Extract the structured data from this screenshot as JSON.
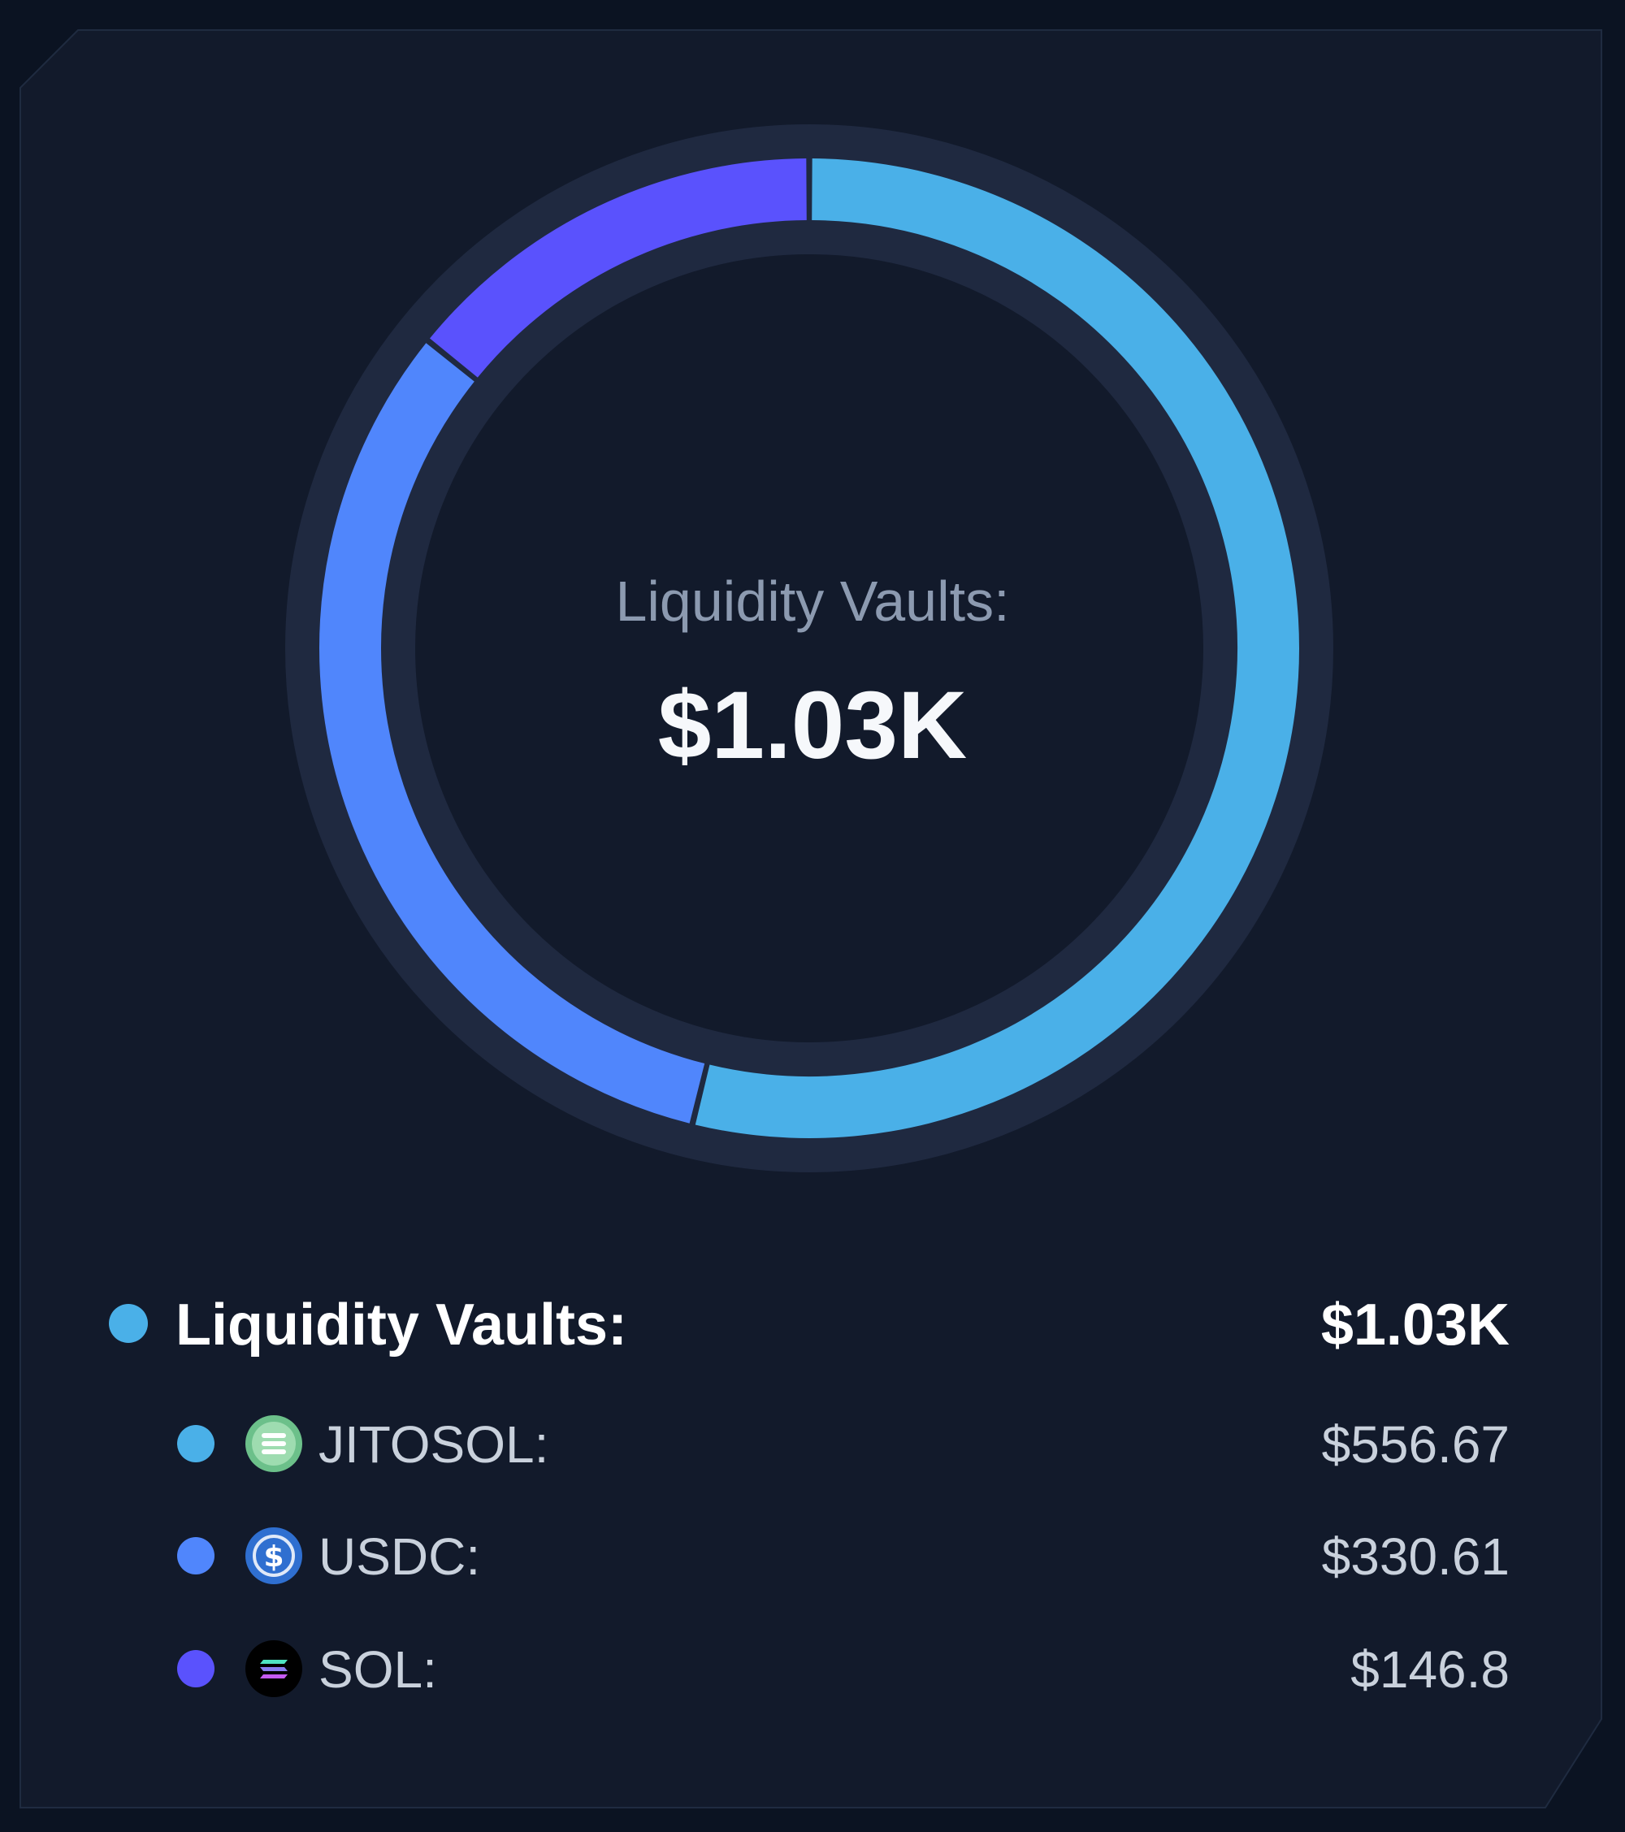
{
  "colors": {
    "jitosol": "#4ab0e8",
    "usdc": "#5086fc",
    "sol": "#5a52fd",
    "track": "#1f2940",
    "card": "#121a2b"
  },
  "center": {
    "label": "Liquidity Vaults:",
    "value": "$1.03K"
  },
  "legend": {
    "total": {
      "label": "Liquidity Vaults:",
      "value": "$1.03K"
    },
    "items": [
      {
        "icon": "jitosol-icon",
        "label": "JITOSOL:",
        "value": "$556.67"
      },
      {
        "icon": "usdc-icon",
        "label": "USDC:",
        "value": "$330.61"
      },
      {
        "icon": "sol-icon",
        "label": "SOL:",
        "value": "$146.8"
      }
    ]
  },
  "chart_data": {
    "type": "pie",
    "title": "Liquidity Vaults:",
    "categories": [
      "JITOSOL",
      "USDC",
      "SOL"
    ],
    "values": [
      556.67,
      330.61,
      146.8
    ],
    "colors": [
      "#4ab0e8",
      "#5086fc",
      "#5a52fd"
    ]
  }
}
